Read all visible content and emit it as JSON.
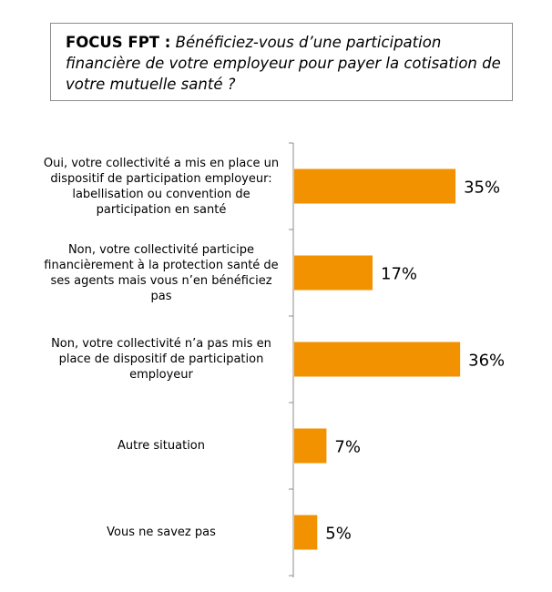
{
  "chart_data": {
    "type": "bar",
    "orientation": "horizontal",
    "title_prefix": "FOCUS FPT :",
    "title": "Bénéficiez-vous d’une participation financière de votre employeur  pour payer la cotisation de votre mutuelle santé ?",
    "categories": [
      "Oui, votre collectivité a mis en place un dispositif de participation employeur: labellisation ou convention de participation en santé",
      "Non, votre collectivité participe financièrement à la protection santé de ses agents mais vous n’en bénéficiez pas",
      "Non, votre collectivité n’a pas mis en place de dispositif de participation employeur",
      "Autre situation",
      "Vous ne savez pas"
    ],
    "values": [
      35,
      17,
      36,
      7,
      5
    ],
    "data_labels": [
      "35%",
      "17%",
      "36%",
      "7%",
      "5%"
    ],
    "unit": "%",
    "bar_color": "#F39200",
    "grid": false,
    "legend": "none"
  }
}
